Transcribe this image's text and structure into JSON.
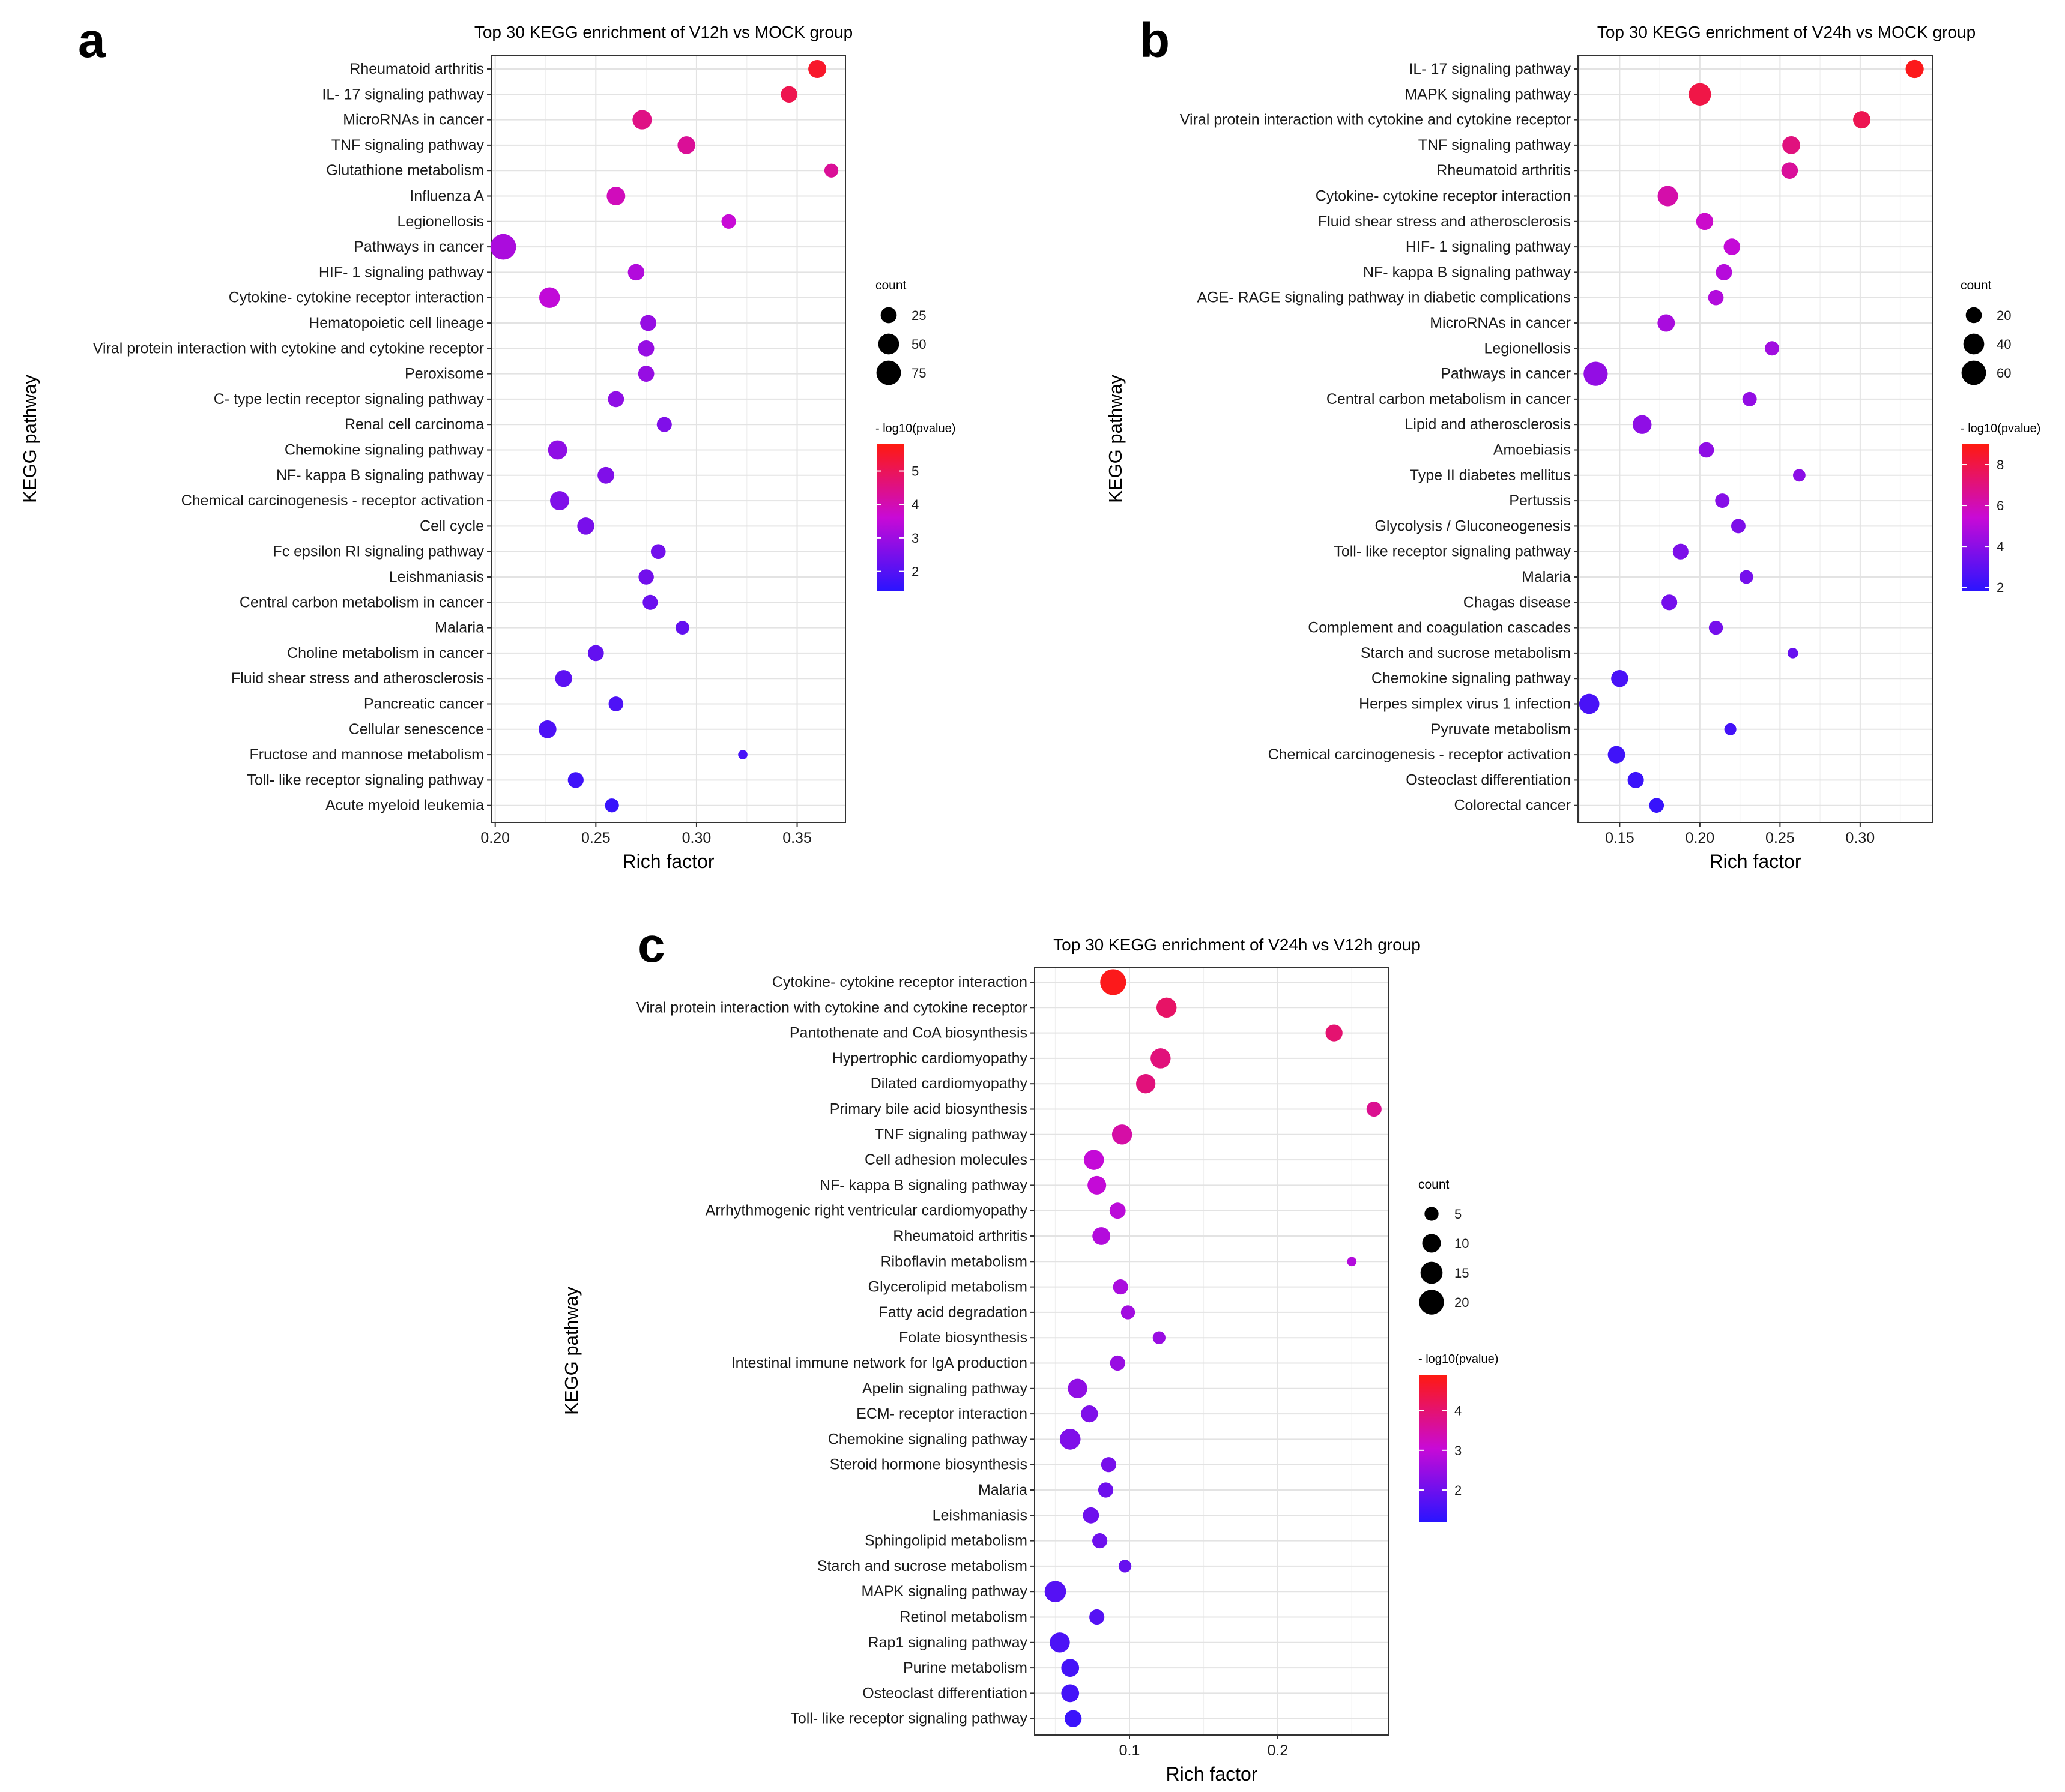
{
  "legend_labels": {
    "count": "count",
    "color": "- log10(pvalue)"
  },
  "axis_labels": {
    "x": "Rich factor",
    "y": "KEGG pathway"
  },
  "chart_data": [
    {
      "type": "scatter",
      "panel_label": "a",
      "title": "Top 30 KEGG enrichment of V12h vs MOCK group",
      "xlabel": "Rich factor",
      "ylabel": "KEGG pathway",
      "xlim": [
        0.198,
        0.374
      ],
      "xticks": [
        0.2,
        0.25,
        0.3,
        0.35
      ],
      "xtick_labels": [
        "0.20",
        "0.25",
        "0.30",
        "0.35"
      ],
      "count_range": [
        1,
        90
      ],
      "count_legend": [
        25,
        50,
        75
      ],
      "color_range": [
        1.4,
        5.8
      ],
      "color_legend": [
        2,
        3,
        4,
        5
      ],
      "categories": [
        "Rheumatoid arthritis",
        "IL- 17 signaling pathway",
        "MicroRNAs in cancer",
        "TNF signaling pathway",
        "Glutathione metabolism",
        "Influenza A",
        "Legionellosis",
        "Pathways in cancer",
        "HIF- 1 signaling pathway",
        "Cytokine- cytokine receptor interaction",
        "Hematopoietic cell lineage",
        "Viral protein interaction with cytokine and cytokine receptor",
        "Peroxisome",
        "C- type lectin receptor signaling pathway",
        "Renal cell carcinoma",
        "Chemokine signaling pathway",
        "NF- kappa B signaling pathway",
        "Chemical carcinogenesis - receptor activation",
        "Cell cycle",
        "Fc epsilon RI signaling pathway",
        "Leishmaniasis",
        "Central carbon metabolism in cancer",
        "Malaria",
        "Choline metabolism in cancer",
        "Fluid shear stress and atherosclerosis",
        "Pancreatic cancer",
        "Cellular senescence",
        "Fructose and mannose metabolism",
        "Toll- like receptor signaling pathway",
        "Acute myeloid leukemia"
      ],
      "rich_factor": [
        0.36,
        0.346,
        0.273,
        0.295,
        0.367,
        0.26,
        0.316,
        0.204,
        0.27,
        0.227,
        0.276,
        0.275,
        0.275,
        0.26,
        0.284,
        0.231,
        0.255,
        0.232,
        0.245,
        0.281,
        0.275,
        0.277,
        0.293,
        0.25,
        0.234,
        0.26,
        0.226,
        0.323,
        0.24,
        0.258
      ],
      "count": [
        34,
        27,
        41,
        33,
        17,
        37,
        19,
        84,
        27,
        49,
        25,
        25,
        25,
        25,
        21,
        40,
        28,
        40,
        30,
        20,
        22,
        21,
        16,
        25,
        29,
        20,
        33,
        5,
        24,
        17
      ],
      "neg_log10_pvalue": [
        5.5,
        5.1,
        4.5,
        4.3,
        4.3,
        3.9,
        3.6,
        3.2,
        3.3,
        3.5,
        2.9,
        2.9,
        2.9,
        2.8,
        2.6,
        2.8,
        2.6,
        2.6,
        2.5,
        2.4,
        2.4,
        2.3,
        2.2,
        2.2,
        2.1,
        1.9,
        1.9,
        1.8,
        1.7,
        1.6
      ]
    },
    {
      "type": "scatter",
      "panel_label": "b",
      "title": "Top 30 KEGG enrichment of V24h vs MOCK group",
      "xlabel": "Rich factor",
      "ylabel": "KEGG pathway",
      "xlim": [
        0.124,
        0.345
      ],
      "xticks": [
        0.15,
        0.2,
        0.25,
        0.3
      ],
      "xtick_labels": [
        "0.15",
        "0.20",
        "0.25",
        "0.30"
      ],
      "count_range": [
        1,
        72
      ],
      "count_legend": [
        20,
        40,
        60
      ],
      "color_range": [
        1.8,
        9.0
      ],
      "color_legend": [
        2,
        4,
        6,
        8
      ],
      "categories": [
        "IL- 17 signaling pathway",
        "MAPK signaling pathway",
        "Viral protein interaction with cytokine and cytokine receptor",
        "TNF signaling pathway",
        "Rheumatoid arthritis",
        "Cytokine- cytokine receptor interaction",
        "Fluid shear stress and atherosclerosis",
        "HIF- 1 signaling pathway",
        "NF- kappa B signaling pathway",
        "AGE- RAGE signaling pathway in diabetic complications",
        "MicroRNAs in cancer",
        "Legionellosis",
        "Pathways in cancer",
        "Central carbon metabolism in cancer",
        "Lipid and atherosclerosis",
        "Amoebiasis",
        "Type II diabetes mellitus",
        "Pertussis",
        "Glycolysis / Gluconeogenesis",
        "Toll- like receptor signaling pathway",
        "Malaria",
        "Chagas disease",
        "Complement and coagulation cascades",
        "Starch and sucrose metabolism",
        "Chemokine signaling pathway",
        "Herpes simplex virus 1 infection",
        "Pyruvate metabolism",
        "Chemical carcinogenesis - receptor activation",
        "Osteoclast differentiation",
        "Colorectal cancer"
      ],
      "rich_factor": [
        0.334,
        0.2,
        0.301,
        0.257,
        0.256,
        0.18,
        0.203,
        0.22,
        0.215,
        0.21,
        0.179,
        0.245,
        0.135,
        0.231,
        0.164,
        0.204,
        0.262,
        0.214,
        0.224,
        0.188,
        0.229,
        0.181,
        0.21,
        0.258,
        0.15,
        0.131,
        0.219,
        0.148,
        0.16,
        0.173
      ],
      "count": [
        28,
        48,
        25,
        27,
        22,
        38,
        24,
        22,
        21,
        18,
        25,
        15,
        58,
        15,
        31,
        18,
        10,
        15,
        15,
        19,
        13,
        19,
        14,
        6,
        24,
        37,
        9,
        25,
        21,
        16
      ],
      "neg_log10_pvalue": [
        8.8,
        8.0,
        7.8,
        7.0,
        6.5,
        6.2,
        5.6,
        5.3,
        5.0,
        4.9,
        4.7,
        4.5,
        4.2,
        4.2,
        4.1,
        4.1,
        4.0,
        3.9,
        3.7,
        3.7,
        3.5,
        3.5,
        3.5,
        3.2,
        2.5,
        2.5,
        2.4,
        2.3,
        2.2,
        2.1
      ]
    },
    {
      "type": "scatter",
      "panel_label": "c",
      "title": "Top 30 KEGG enrichment of V24h vs V12h group",
      "xlabel": "Rich factor",
      "ylabel": "KEGG pathway",
      "xlim": [
        0.036,
        0.275
      ],
      "xticks": [
        0.1,
        0.2
      ],
      "xtick_labels": [
        "0.1",
        "0.2"
      ],
      "count_range": [
        1,
        23
      ],
      "count_legend": [
        5,
        10,
        15,
        20
      ],
      "color_range": [
        1.2,
        4.9
      ],
      "color_legend": [
        2,
        3,
        4
      ],
      "categories": [
        "Cytokine- cytokine receptor interaction",
        "Viral protein interaction with cytokine and cytokine receptor",
        "Pantothenate and CoA biosynthesis",
        "Hypertrophic cardiomyopathy",
        "Dilated cardiomyopathy",
        "Primary bile acid biosynthesis",
        "TNF signaling pathway",
        "Cell adhesion molecules",
        "NF- kappa B signaling pathway",
        "Arrhythmogenic right ventricular cardiomyopathy",
        "Rheumatoid arthritis",
        "Riboflavin metabolism",
        "Glycerolipid metabolism",
        "Fatty acid degradation",
        "Folate biosynthesis",
        "Intestinal immune network for IgA production",
        "Apelin signaling pathway",
        "ECM- receptor interaction",
        "Chemokine signaling pathway",
        "Steroid hormone biosynthesis",
        "Malaria",
        "Leishmaniasis",
        "Sphingolipid metabolism",
        "Starch and sucrose metabolism",
        "MAPK signaling pathway",
        "Retinol metabolism",
        "Rap1 signaling pathway",
        "Purine metabolism",
        "Osteoclast differentiation",
        "Toll- like receptor signaling pathway"
      ],
      "rich_factor": [
        0.089,
        0.125,
        0.238,
        0.121,
        0.111,
        0.265,
        0.095,
        0.076,
        0.078,
        0.092,
        0.081,
        0.25,
        0.094,
        0.099,
        0.12,
        0.092,
        0.065,
        0.073,
        0.06,
        0.086,
        0.084,
        0.074,
        0.08,
        0.097,
        0.05,
        0.078,
        0.053,
        0.06,
        0.06,
        0.062
      ],
      "count": [
        22,
        12,
        8,
        12,
        11,
        6,
        12,
        12,
        10,
        7,
        9,
        2,
        6,
        5,
        4,
        6,
        11,
        8,
        13,
        6,
        6,
        7,
        6,
        4,
        14,
        6,
        12,
        9,
        9,
        8
      ],
      "neg_log10_pvalue": [
        4.8,
        4.1,
        4.0,
        3.9,
        3.9,
        3.7,
        3.5,
        3.0,
        3.0,
        2.9,
        2.8,
        2.8,
        2.7,
        2.6,
        2.5,
        2.5,
        2.4,
        2.2,
        2.2,
        2.1,
        2.0,
        2.0,
        2.0,
        1.9,
        1.7,
        1.7,
        1.6,
        1.5,
        1.5,
        1.4
      ]
    }
  ]
}
